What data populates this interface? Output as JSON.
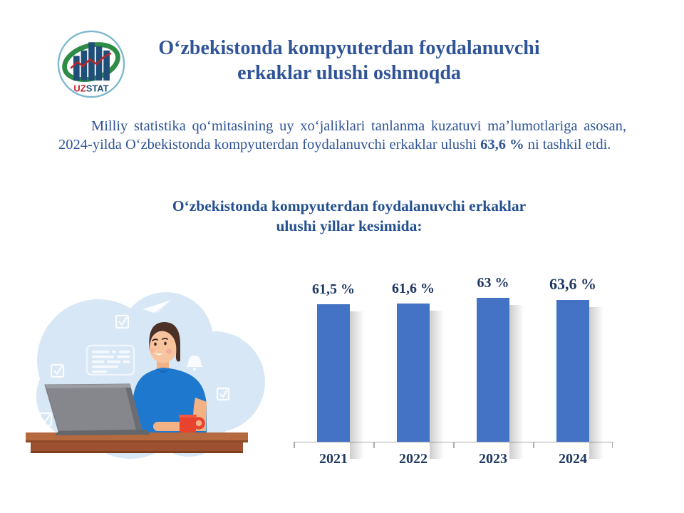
{
  "logo": {
    "uz": "UZ",
    "stat": "STAT",
    "colors": {
      "uz": "#C42127",
      "stat": "#1F4E79",
      "swoosh": "#2E8C46",
      "bars": "#1F4E79",
      "line": "#C42127",
      "ring": "#7FB8CF"
    }
  },
  "title": {
    "line1": "Oʻzbekistonda kompyuterdan foydalanuvchi",
    "line2": "erkaklar ulushi oshmoqda"
  },
  "intro": {
    "before": "Milliy statistika qoʻmitasining uy xoʻjaliklari tanlanma kuzatuvi maʼlumotlariga asosan, 2024-yilda Oʻzbekistonda kompyuterdan foydalanuvchi erkaklar ulushi ",
    "highlight": "63,6 %",
    "after": " ni tashkil etdi."
  },
  "subtitle": {
    "line1": "Oʻzbekistonda kompyuterdan foydalanuvchi erkaklar",
    "line2": "ulushi yillar kesimida:"
  },
  "chart_data": {
    "type": "bar",
    "categories": [
      "2021",
      "2022",
      "2023",
      "2024"
    ],
    "values": [
      61.5,
      61.6,
      63,
      63.6
    ],
    "value_labels": [
      "61,5 %",
      "61,6 %",
      "63 %",
      "63,6 %"
    ],
    "unit": "%",
    "title": "Oʻzbekistonda kompyuterdan foydalanuvchi erkaklar ulushi yillar kesimida:",
    "xlabel": "",
    "ylabel": "",
    "ylim": [
      40,
      66
    ],
    "grid": false,
    "legend": "none",
    "bar_color": "#4472C4",
    "label_color": "#1F3864",
    "axis_color": "#ABABAB"
  },
  "illustration": {
    "description": "man with laptop at desk",
    "colors": {
      "cloud": "#D7E7F6",
      "shirt": "#1E78CE",
      "skin": "#F8C49E",
      "hair": "#4C3127",
      "desk": "#B4693F",
      "laptop": "#85878C",
      "mug": "#E8432E"
    }
  }
}
